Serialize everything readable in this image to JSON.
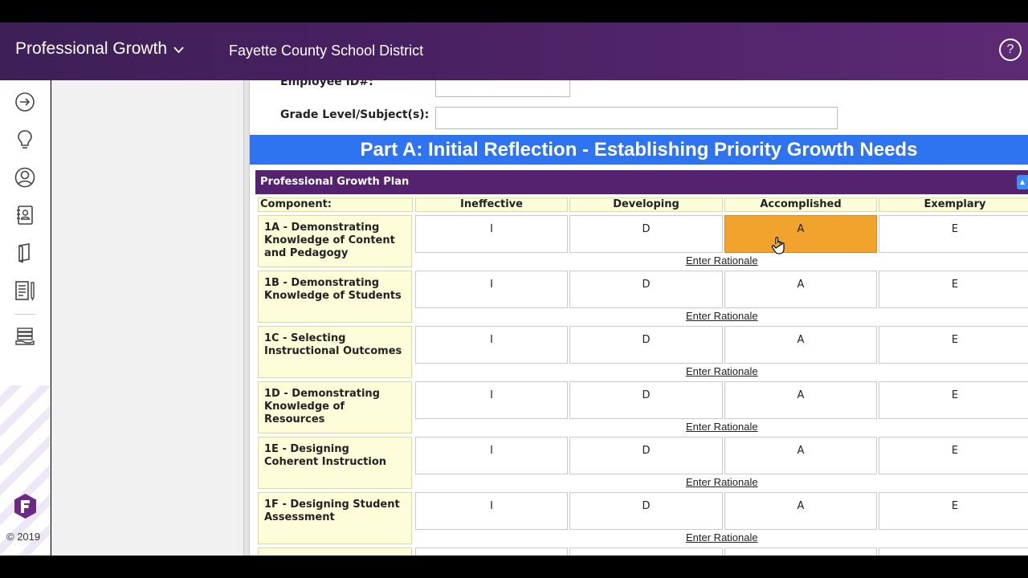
{
  "header": {
    "app_title": "Professional Growth",
    "district": "Fayette County School District",
    "help_symbol": "?"
  },
  "sidebar": {
    "icons": [
      "arrow-right-circle-icon",
      "lightbulb-icon",
      "user-circle-icon",
      "address-book-icon",
      "book-icon",
      "document-pen-icon",
      "stack-hand-icon"
    ],
    "logo": "frontline-logo-icon",
    "copyright": "© 2019"
  },
  "form": {
    "employee_id_label": "Employee ID#:",
    "employee_id_value": "",
    "grade_label": "Grade Level/Subject(s):",
    "grade_value": ""
  },
  "part_a_title": "Part A: Initial Reflection - Establishing Priority Growth Needs",
  "plan": {
    "title": "Professional Growth Plan",
    "columns": [
      "Component:",
      "Ineffective",
      "Developing",
      "Accomplished",
      "Exemplary"
    ],
    "rating_letters": [
      "I",
      "D",
      "A",
      "E"
    ],
    "rationale_label": "Enter Rationale",
    "rows": [
      {
        "component": "1A - Demonstrating Knowledge of Content and Pedagogy",
        "selected": "Accomplished"
      },
      {
        "component": "1B - Demonstrating Knowledge of Students",
        "selected": ""
      },
      {
        "component": "1C - Selecting Instructional Outcomes",
        "selected": ""
      },
      {
        "component": "1D - Demonstrating Knowledge of Resources",
        "selected": ""
      },
      {
        "component": "1E - Designing Coherent Instruction",
        "selected": ""
      },
      {
        "component": "1F - Designing Student Assessment",
        "selected": ""
      }
    ]
  },
  "colors": {
    "topbar": "#4a2163",
    "banner": "#2e73f0",
    "plan_header": "#552270",
    "selected_cell": "#f1a32e",
    "component_bg": "#fdfdd9"
  }
}
